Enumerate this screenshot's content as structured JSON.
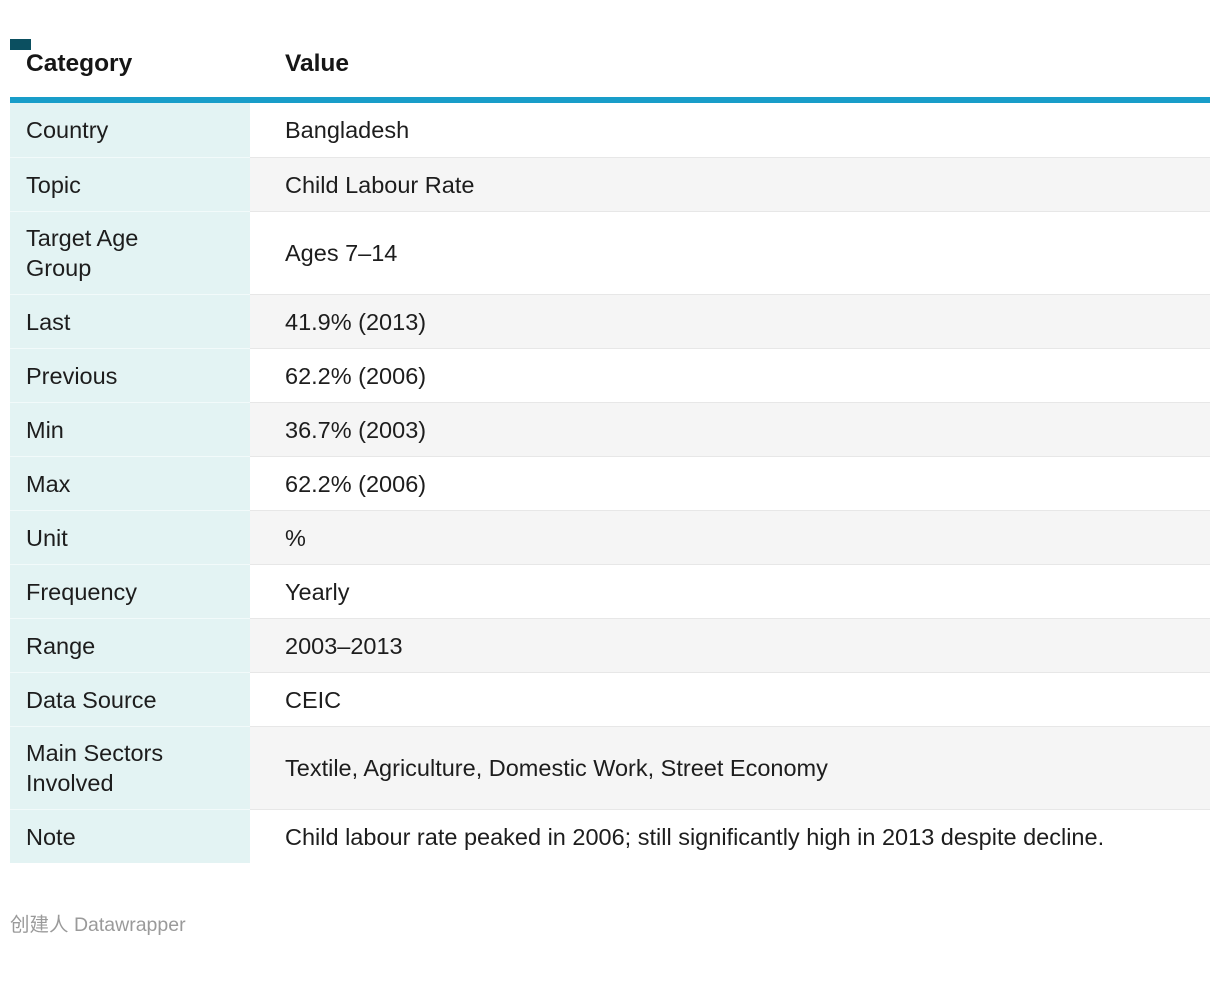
{
  "colors": {
    "accent_rule": "#189dc9",
    "category_column_bg": "#e3f3f3",
    "stripe_bg": "#f5f5f5",
    "corner_marker": "#0b4f60"
  },
  "footer": {
    "prefix": "创建人",
    "brand": "Datawrapper"
  },
  "table": {
    "columns": [
      "Category",
      "Value"
    ],
    "rows": [
      {
        "category": "Country",
        "value": "Bangladesh"
      },
      {
        "category": "Topic",
        "value": "Child Labour Rate"
      },
      {
        "category": "Target Age Group",
        "value": "Ages 7–14"
      },
      {
        "category": "Last",
        "value": "41.9% (2013)"
      },
      {
        "category": "Previous",
        "value": "62.2% (2006)"
      },
      {
        "category": "Min",
        "value": "36.7% (2003)"
      },
      {
        "category": "Max",
        "value": "62.2% (2006)"
      },
      {
        "category": "Unit",
        "value": "%"
      },
      {
        "category": "Frequency",
        "value": "Yearly"
      },
      {
        "category": "Range",
        "value": "2003–2013"
      },
      {
        "category": "Data Source",
        "value": "CEIC"
      },
      {
        "category": "Main Sectors Involved",
        "value": "Textile, Agriculture, Domestic Work, Street Economy"
      },
      {
        "category": "Note",
        "value": "Child labour rate peaked in 2006; still significantly high in 2013 despite decline."
      }
    ]
  },
  "chart_data": {
    "type": "table",
    "title": "",
    "columns": [
      "Category",
      "Value"
    ],
    "rows": [
      [
        "Country",
        "Bangladesh"
      ],
      [
        "Topic",
        "Child Labour Rate"
      ],
      [
        "Target Age Group",
        "Ages 7–14"
      ],
      [
        "Last",
        "41.9% (2013)"
      ],
      [
        "Previous",
        "62.2% (2006)"
      ],
      [
        "Min",
        "36.7% (2003)"
      ],
      [
        "Max",
        "62.2% (2006)"
      ],
      [
        "Unit",
        "%"
      ],
      [
        "Frequency",
        "Yearly"
      ],
      [
        "Range",
        "2003–2013"
      ],
      [
        "Data Source",
        "CEIC"
      ],
      [
        "Main Sectors Involved",
        "Textile, Agriculture, Domestic Work, Street Economy"
      ],
      [
        "Note",
        "Child labour rate peaked in 2006; still significantly high in 2013 despite decline."
      ]
    ],
    "series_values": {
      "last_pct": 41.9,
      "last_year": 2013,
      "previous_pct": 62.2,
      "previous_year": 2006,
      "min_pct": 36.7,
      "min_year": 2003,
      "max_pct": 62.2,
      "max_year": 2006,
      "unit": "%",
      "range": [
        2003,
        2013
      ]
    },
    "attribution": "创建人 Datawrapper"
  }
}
